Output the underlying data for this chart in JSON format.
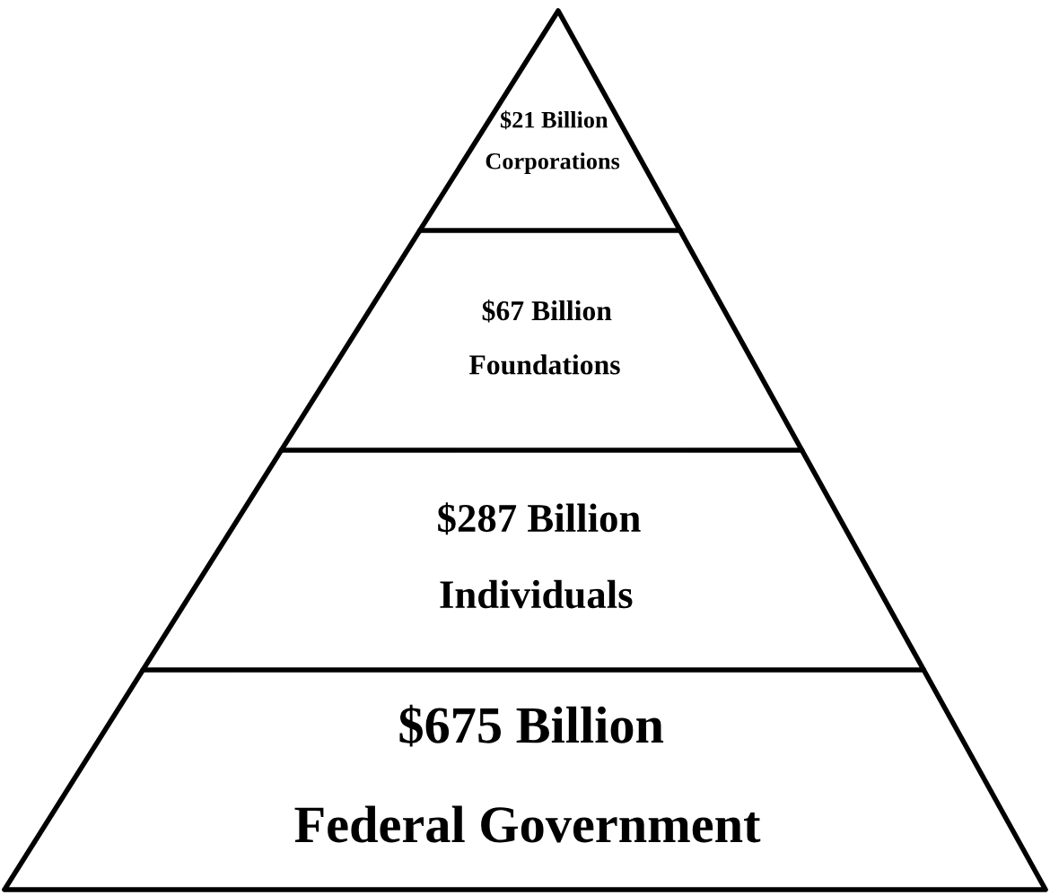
{
  "chart_data": {
    "type": "other",
    "categories": [
      "Corporations",
      "Foundations",
      "Individuals",
      "Federal Government"
    ],
    "values": [
      21,
      67,
      287,
      675
    ],
    "value_labels": [
      "$21 Billion",
      "$67 Billion",
      "$287 Billion",
      "$675 Billion"
    ]
  }
}
